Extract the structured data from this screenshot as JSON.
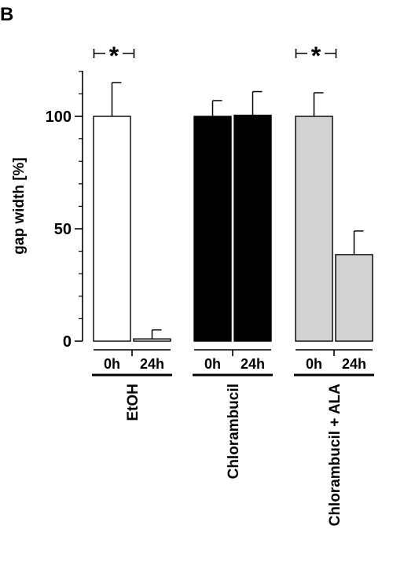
{
  "panel_label": "B",
  "chart_data": {
    "type": "bar",
    "title": "",
    "ylabel": "gap width [%]",
    "xlabel": "",
    "ylim": [
      0,
      120
    ],
    "yticks": [
      0,
      50,
      100
    ],
    "minor_tick_step": 10,
    "bar_labels": [
      "0h",
      "24h"
    ],
    "groups": [
      {
        "name": "EtOH",
        "fill": "#ffffff",
        "bars": [
          {
            "label": "0h",
            "value": 100,
            "error": 15
          },
          {
            "label": "24h",
            "value": 1,
            "error": 4
          }
        ],
        "significance": "*"
      },
      {
        "name": "Chlorambucil",
        "fill": "#000000",
        "bars": [
          {
            "label": "0h",
            "value": 100,
            "error": 7
          },
          {
            "label": "24h",
            "value": 100.5,
            "error": 10.5
          }
        ],
        "significance": ""
      },
      {
        "name": "Chlorambucil + ALA",
        "fill": "#d3d3d3",
        "bars": [
          {
            "label": "0h",
            "value": 100,
            "error": 10.5
          },
          {
            "label": "24h",
            "value": 38.5,
            "error": 10.5
          }
        ],
        "significance": "*"
      }
    ],
    "grid": false,
    "legend": "none"
  }
}
